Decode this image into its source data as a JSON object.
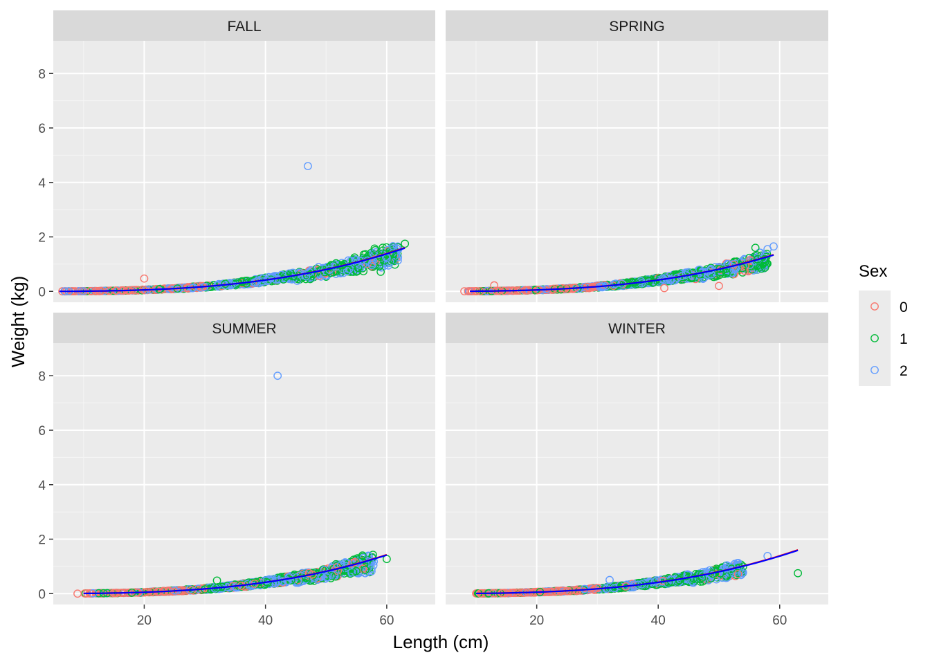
{
  "chart_data": {
    "type": "scatter",
    "xlabel": "Length (cm)",
    "ylabel": "Weight (kg)",
    "xlim": [
      5,
      68
    ],
    "ylim": [
      -0.4,
      9.2
    ],
    "x_ticks": [
      20,
      40,
      60
    ],
    "y_ticks": [
      0,
      2,
      4,
      6,
      8
    ],
    "grid": true,
    "legend": {
      "title": "Sex",
      "position": "right",
      "entries": [
        {
          "label": "0",
          "color": "#F8766D"
        },
        {
          "label": "1",
          "color": "#00BA38"
        },
        {
          "label": "2",
          "color": "#619CFF"
        }
      ]
    },
    "fit_line_colors": [
      "#FF0000",
      "#0000FF"
    ],
    "panels": [
      {
        "title": "FALL",
        "fit": {
          "a": 7.5e-06,
          "b": 2.96,
          "x_range": [
            6,
            63
          ]
        },
        "outliers": [
          {
            "x": 20,
            "y": 0.47,
            "sex": "0"
          },
          {
            "x": 47,
            "y": 4.6,
            "sex": "2"
          },
          {
            "x": 63,
            "y": 1.75,
            "sex": "1"
          },
          {
            "x": 59,
            "y": 0.72,
            "sex": "1"
          },
          {
            "x": 60,
            "y": 1.22,
            "sex": "2"
          },
          {
            "x": 58,
            "y": 1.57,
            "sex": "1"
          }
        ],
        "x_range": [
          6,
          62
        ]
      },
      {
        "title": "SPRING",
        "fit": {
          "a": 6.5e-06,
          "b": 3.0,
          "x_range": [
            9,
            59
          ]
        },
        "outliers": [
          {
            "x": 59,
            "y": 1.65,
            "sex": "2"
          },
          {
            "x": 56,
            "y": 1.6,
            "sex": "1"
          },
          {
            "x": 58,
            "y": 1.55,
            "sex": "2"
          },
          {
            "x": 13,
            "y": 0.22,
            "sex": "0"
          },
          {
            "x": 50,
            "y": 0.2,
            "sex": "0"
          },
          {
            "x": 41,
            "y": 0.12,
            "sex": "0"
          }
        ],
        "x_range": [
          8,
          58
        ]
      },
      {
        "title": "SUMMER",
        "fit": {
          "a": 5.8e-06,
          "b": 3.03,
          "x_range": [
            10,
            60
          ]
        },
        "outliers": [
          {
            "x": 42,
            "y": 8.0,
            "sex": "2"
          },
          {
            "x": 60,
            "y": 1.27,
            "sex": "1"
          },
          {
            "x": 56,
            "y": 1.4,
            "sex": "1"
          },
          {
            "x": 9,
            "y": 0.0,
            "sex": "0"
          },
          {
            "x": 32,
            "y": 0.48,
            "sex": "1"
          }
        ],
        "x_range": [
          10,
          58
        ]
      },
      {
        "title": "WINTER",
        "fit": {
          "a": 7.5e-06,
          "b": 2.96,
          "x_range": [
            10,
            63
          ]
        },
        "outliers": [
          {
            "x": 63,
            "y": 0.75,
            "sex": "1"
          },
          {
            "x": 58,
            "y": 1.38,
            "sex": "2"
          },
          {
            "x": 32,
            "y": 0.5,
            "sex": "2"
          }
        ],
        "x_range": [
          10,
          54
        ]
      }
    ]
  }
}
